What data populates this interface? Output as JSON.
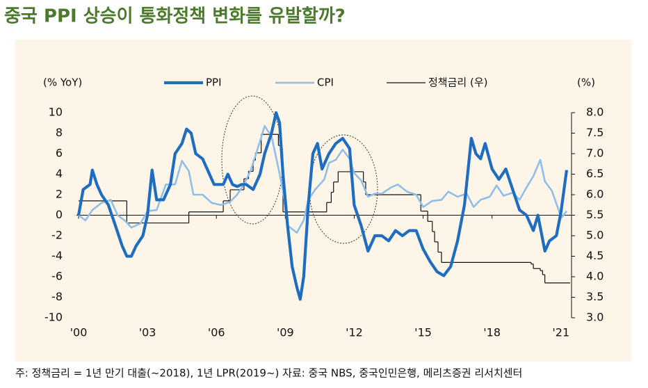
{
  "chart_data": {
    "type": "line",
    "title": "중국 PPI 상승이 통화정책 변화를 유발할까?",
    "y_label": "(% YoY)",
    "y2_label": "(%)",
    "footnote": "주: 정책금리 = 1년 만기 대출(~2018), 1년 LPR(2019~) 자료: 중국 NBS, 중국인민은행, 메리츠증권 리서치센터",
    "xlim": [
      2000,
      2021.4
    ],
    "xticks": [
      {
        "value": 2000,
        "label": "'00"
      },
      {
        "value": 2003,
        "label": "'03"
      },
      {
        "value": 2006,
        "label": "'06"
      },
      {
        "value": 2009,
        "label": "'09"
      },
      {
        "value": 2012,
        "label": "'12"
      },
      {
        "value": 2015,
        "label": "'15"
      },
      {
        "value": 2018,
        "label": "'18"
      },
      {
        "value": 2021,
        "label": "'21"
      }
    ],
    "ylim": [
      -10,
      10
    ],
    "yticks": [
      -10,
      -8,
      -6,
      -4,
      -2,
      0,
      2,
      4,
      6,
      8,
      10
    ],
    "y2lim": [
      3,
      8
    ],
    "y2ticks": [
      {
        "value": 3,
        "label": "3.0"
      },
      3.5,
      {
        "value": 4,
        "label": "4.0"
      },
      4.5,
      {
        "value": 5,
        "label": "5.0"
      },
      5.5,
      {
        "value": 6,
        "label": "6.0"
      },
      6.5,
      {
        "value": 7,
        "label": "7.0"
      },
      7.5,
      {
        "value": 8,
        "label": "8.0"
      }
    ],
    "series": [
      {
        "name": "PPI",
        "color": "#1f6dbf",
        "x": [
          2000.0,
          2000.2,
          2000.5,
          2000.6,
          2000.8,
          2001.0,
          2001.3,
          2001.6,
          2001.9,
          2002.1,
          2002.3,
          2002.5,
          2002.8,
          2003.0,
          2003.2,
          2003.4,
          2003.7,
          2004.0,
          2004.2,
          2004.5,
          2004.7,
          2004.9,
          2005.1,
          2005.4,
          2005.7,
          2005.9,
          2006.1,
          2006.3,
          2006.5,
          2006.7,
          2006.9,
          2007.1,
          2007.3,
          2007.6,
          2007.9,
          2008.1,
          2008.4,
          2008.6,
          2008.75,
          2008.9,
          2009.1,
          2009.3,
          2009.5,
          2009.65,
          2009.8,
          2010.0,
          2010.2,
          2010.4,
          2010.6,
          2010.9,
          2011.2,
          2011.5,
          2011.8,
          2012.0,
          2012.3,
          2012.6,
          2012.9,
          2013.2,
          2013.5,
          2013.8,
          2014.1,
          2014.4,
          2014.7,
          2015.0,
          2015.3,
          2015.6,
          2015.9,
          2016.2,
          2016.5,
          2016.8,
          2017.1,
          2017.3,
          2017.5,
          2017.7,
          2018.0,
          2018.3,
          2018.6,
          2018.9,
          2019.2,
          2019.5,
          2019.8,
          2020.0,
          2020.3,
          2020.5,
          2020.8,
          2021.0,
          2021.25
        ],
        "values": [
          0,
          2.5,
          3,
          4.4,
          3,
          2,
          1,
          -1,
          -3,
          -4,
          -4,
          -3,
          -2,
          0,
          4.4,
          1.5,
          1.5,
          3,
          6,
          7,
          8.4,
          8,
          6,
          5.5,
          4,
          3,
          3,
          3,
          4,
          3,
          2.8,
          3,
          3,
          2.5,
          4,
          6,
          8,
          10,
          9,
          4,
          -1,
          -5,
          -7,
          -8.2,
          -6,
          1,
          6,
          7,
          4.5,
          6,
          7,
          7.5,
          6.5,
          1,
          -1,
          -3.5,
          -2,
          -2,
          -2.5,
          -1.5,
          -2,
          -1.5,
          -1.5,
          -3.3,
          -4.5,
          -5.5,
          -5.9,
          -5,
          -2.5,
          1,
          7.5,
          6,
          5.5,
          7,
          4.5,
          3.5,
          4.5,
          2.5,
          0.5,
          0,
          -1.5,
          0,
          -3.5,
          -2.5,
          -2,
          0.3,
          4.4
        ]
      },
      {
        "name": "CPI",
        "color": "#8fbfe8",
        "x": [
          2000.0,
          2000.3,
          2000.6,
          2001.0,
          2001.4,
          2001.7,
          2002.0,
          2002.3,
          2002.7,
          2003.0,
          2003.4,
          2003.8,
          2004.2,
          2004.5,
          2004.8,
          2005.0,
          2005.4,
          2005.8,
          2006.2,
          2006.6,
          2006.9,
          2007.2,
          2007.5,
          2007.8,
          2008.1,
          2008.4,
          2008.7,
          2008.9,
          2009.1,
          2009.5,
          2009.8,
          2010.0,
          2010.3,
          2010.7,
          2010.9,
          2011.2,
          2011.5,
          2011.8,
          2012.0,
          2012.3,
          2012.6,
          2012.9,
          2013.2,
          2013.6,
          2013.9,
          2014.3,
          2014.7,
          2015.0,
          2015.4,
          2015.8,
          2016.1,
          2016.5,
          2016.9,
          2017.2,
          2017.5,
          2017.9,
          2018.2,
          2018.5,
          2018.9,
          2019.2,
          2019.5,
          2019.8,
          2020.1,
          2020.3,
          2020.6,
          2020.9,
          2021.0,
          2021.25
        ],
        "values": [
          0,
          -0.5,
          0.5,
          1.2,
          1.5,
          0,
          -0.5,
          -1.2,
          -0.8,
          0.4,
          0.5,
          3,
          3,
          5.3,
          4.3,
          2,
          2,
          1.2,
          1,
          1.3,
          2,
          3,
          4.4,
          6.5,
          8.7,
          7.7,
          4.6,
          2.4,
          -1,
          -1.7,
          -0.5,
          1.5,
          2.5,
          3.5,
          5.1,
          5.4,
          6.4,
          5.5,
          4.1,
          3.4,
          1.8,
          2.1,
          2.1,
          2.7,
          3,
          2.3,
          2,
          0.8,
          1.4,
          1.5,
          2.3,
          1.8,
          2.1,
          0.8,
          1.5,
          1.8,
          2.9,
          1.9,
          2.2,
          1.5,
          2.7,
          3.8,
          5.4,
          3.3,
          2.4,
          0.5,
          -0.3,
          0.4
        ]
      },
      {
        "name": "정책금리 (우)",
        "color": "#111111",
        "axis": "y2",
        "step": true,
        "x": [
          2000.0,
          2002.1,
          2004.8,
          2006.3,
          2006.6,
          2007.2,
          2007.4,
          2007.6,
          2007.7,
          2007.95,
          2008.7,
          2008.8,
          2008.85,
          2008.9,
          2010.8,
          2011.0,
          2011.1,
          2011.3,
          2012.4,
          2012.5,
          2014.9,
          2015.2,
          2015.4,
          2015.5,
          2015.65,
          2015.8,
          2019.7,
          2019.8,
          2020.1,
          2020.2,
          2020.3
        ],
        "values": [
          5.85,
          5.31,
          5.58,
          5.85,
          6.12,
          6.39,
          6.57,
          6.84,
          7.02,
          7.47,
          7.2,
          6.93,
          6.66,
          5.58,
          5.81,
          6.06,
          6.31,
          6.56,
          6.31,
          6.0,
          5.6,
          5.35,
          5.1,
          4.85,
          4.6,
          4.35,
          4.31,
          4.2,
          4.15,
          4.05,
          3.85
        ]
      }
    ]
  }
}
